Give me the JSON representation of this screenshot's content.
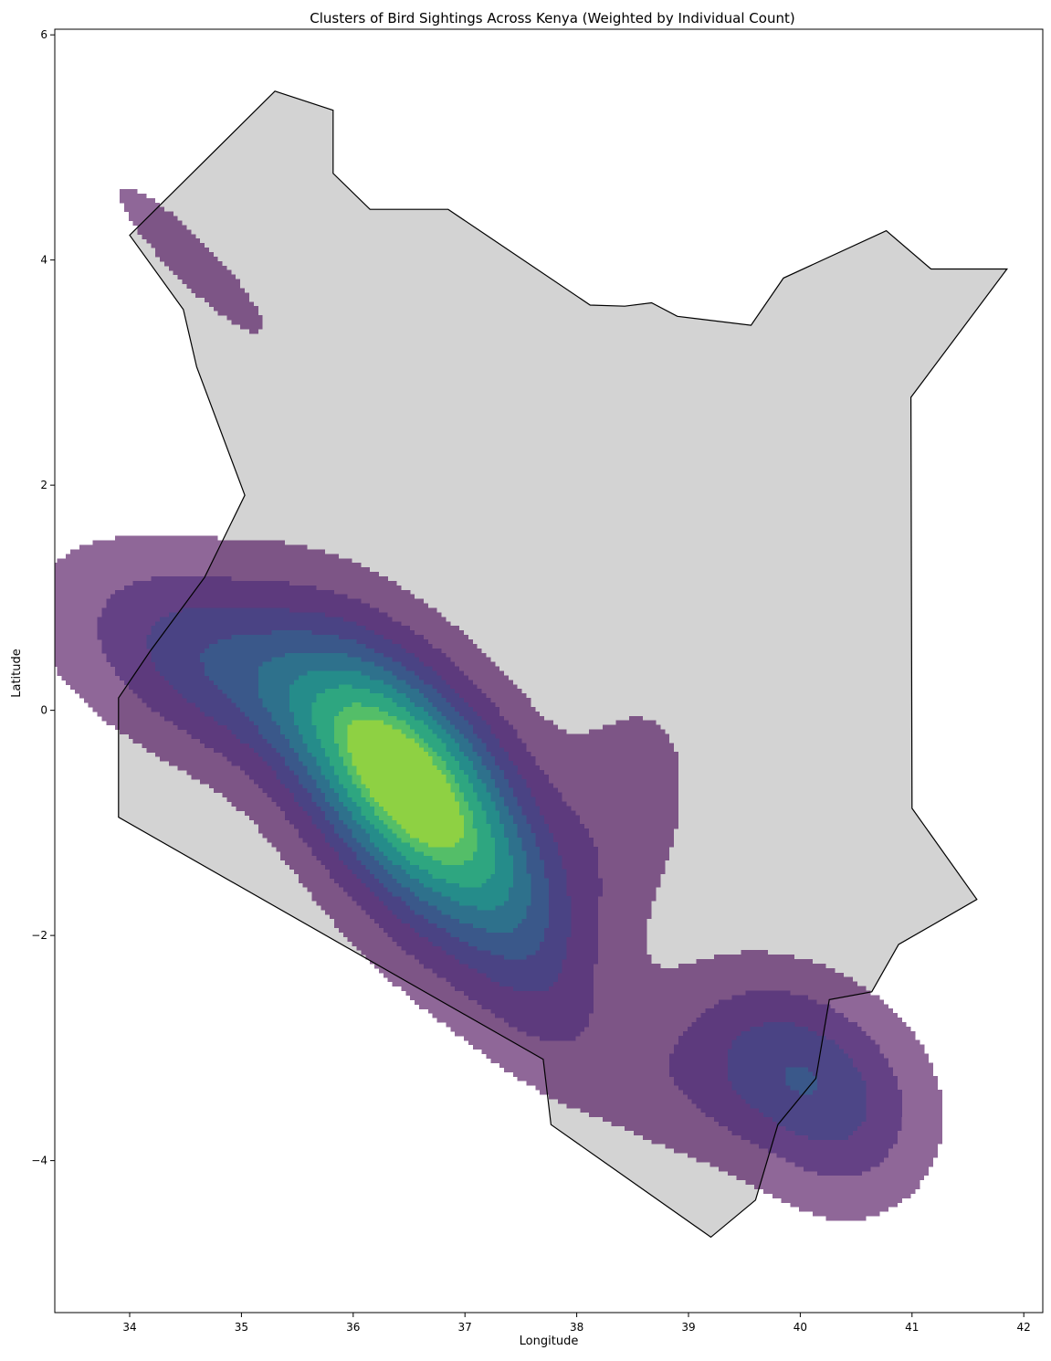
{
  "chart_data": {
    "type": "heatmap",
    "title": "Clusters of Bird Sightings Across Kenya (Weighted by Individual Count)",
    "xlabel": "Longitude",
    "ylabel": "Latitude",
    "xlim": [
      33.33,
      42.17
    ],
    "ylim": [
      -5.35,
      6.05
    ],
    "xticks": [
      34,
      35,
      36,
      37,
      38,
      39,
      40,
      41,
      42
    ],
    "yticks": [
      -4,
      -2,
      0,
      2,
      4,
      6
    ],
    "grid": false,
    "colormap": "viridis",
    "fill_alpha": 0.6,
    "colors": {
      "country_fill": "#d3d3d3",
      "country_edge": "#000000",
      "levels": [
        "#440154",
        "#482878",
        "#3e4a89",
        "#31688e",
        "#26828e",
        "#1f9e89",
        "#35b779",
        "#6ece58",
        "#b5de2b"
      ]
    },
    "boundary": [
      [
        34.0,
        4.22
      ],
      [
        35.3,
        5.5
      ],
      [
        35.82,
        5.33
      ],
      [
        35.82,
        4.77
      ],
      [
        36.15,
        4.45
      ],
      [
        36.85,
        4.45
      ],
      [
        38.12,
        3.6
      ],
      [
        38.43,
        3.59
      ],
      [
        38.67,
        3.62
      ],
      [
        38.9,
        3.5
      ],
      [
        39.56,
        3.42
      ],
      [
        39.85,
        3.84
      ],
      [
        40.77,
        4.26
      ],
      [
        41.17,
        3.92
      ],
      [
        41.85,
        3.92
      ],
      [
        40.99,
        2.78
      ],
      [
        41.0,
        -0.87
      ],
      [
        41.58,
        -1.68
      ],
      [
        40.88,
        -2.08
      ],
      [
        40.64,
        -2.5
      ],
      [
        40.26,
        -2.57
      ],
      [
        40.14,
        -3.27
      ],
      [
        39.8,
        -3.68
      ],
      [
        39.6,
        -4.35
      ],
      [
        39.2,
        -4.68
      ],
      [
        37.77,
        -3.68
      ],
      [
        37.7,
        -3.1
      ],
      [
        33.9,
        -0.95
      ],
      [
        33.9,
        0.11
      ],
      [
        34.18,
        0.52
      ],
      [
        34.67,
        1.18
      ],
      [
        35.03,
        1.91
      ],
      [
        34.6,
        3.05
      ],
      [
        34.48,
        3.56
      ]
    ],
    "clusters": [
      {
        "center": [
          36.5,
          -0.75
        ],
        "sx": 1.0,
        "sy": 0.5,
        "rotate_deg": -55,
        "weight": 1.0
      },
      {
        "center": [
          35.35,
          0.15
        ],
        "sx": 1.2,
        "sy": 0.5,
        "rotate_deg": -22,
        "weight": 0.26
      },
      {
        "center": [
          34.6,
          0.55
        ],
        "sx": 0.7,
        "sy": 0.45,
        "rotate_deg": -30,
        "weight": 0.15
      },
      {
        "center": [
          37.4,
          -1.6
        ],
        "sx": 0.9,
        "sy": 0.35,
        "rotate_deg": -70,
        "weight": 0.18
      },
      {
        "center": [
          38.3,
          -1.1
        ],
        "sx": 0.45,
        "sy": 0.9,
        "rotate_deg": -20,
        "weight": 0.1
      },
      {
        "center": [
          39.0,
          -3.3
        ],
        "sx": 0.6,
        "sy": 0.5,
        "rotate_deg": 0,
        "weight": 0.05
      },
      {
        "center": [
          38.2,
          -3.0
        ],
        "sx": 1.0,
        "sy": 0.4,
        "rotate_deg": -25,
        "weight": 0.05
      },
      {
        "center": [
          39.95,
          -3.2
        ],
        "sx": 0.65,
        "sy": 0.48,
        "rotate_deg": -30,
        "weight": 0.35
      },
      {
        "center": [
          40.45,
          -3.8
        ],
        "sx": 0.45,
        "sy": 0.5,
        "rotate_deg": 0,
        "weight": 0.1
      },
      {
        "center": [
          34.55,
          4.0
        ],
        "sx": 0.7,
        "sy": 0.15,
        "rotate_deg": -45,
        "weight": 0.11
      }
    ],
    "levels": [
      0.05,
      0.15,
      0.27,
      0.39,
      0.51,
      0.63,
      0.75,
      0.87,
      0.95
    ]
  }
}
